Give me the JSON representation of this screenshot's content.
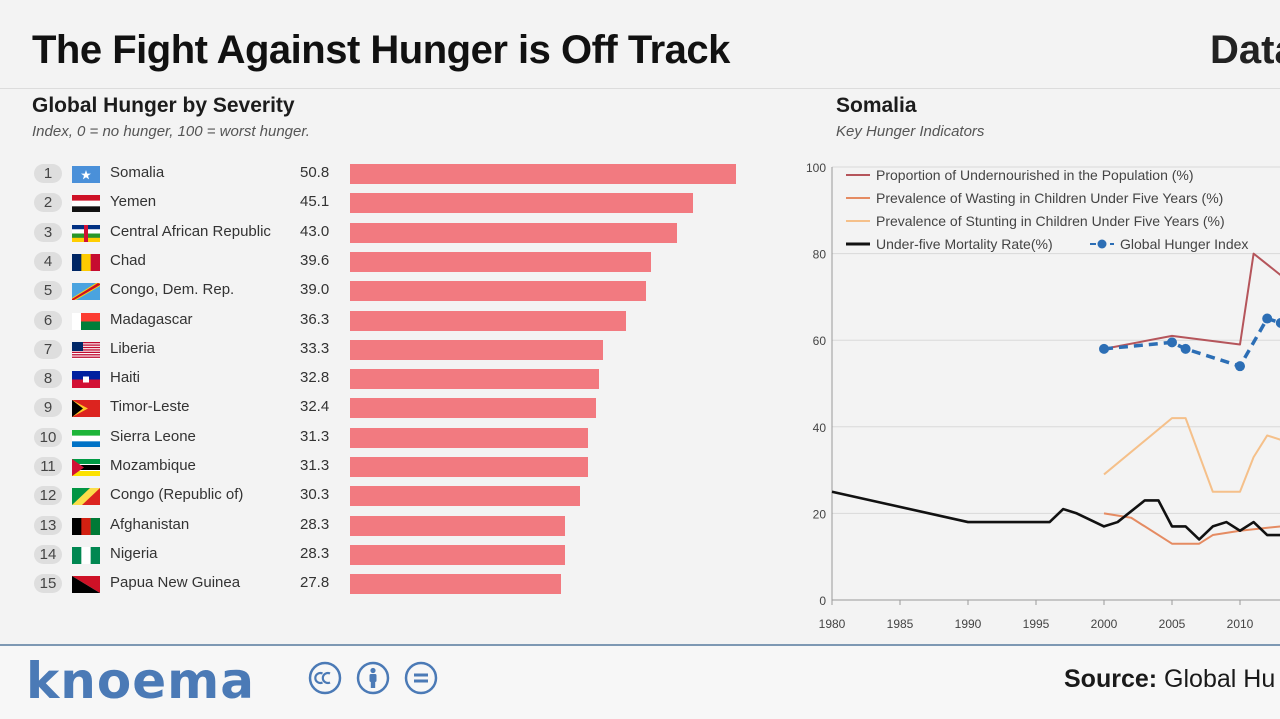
{
  "header": {
    "title": "The Fight Against Hunger is Off Track",
    "title_right": "Data"
  },
  "left_panel": {
    "title": "Global Hunger by Severity",
    "note": "Index, 0 = no hunger, 100 = worst hunger."
  },
  "right_panel": {
    "title": "Somalia",
    "note": "Key Hunger Indicators"
  },
  "chart_data": [
    {
      "type": "bar",
      "orientation": "horizontal",
      "title": "Global Hunger by Severity",
      "subtitle": "Index, 0 = no hunger, 100 = worst hunger.",
      "xlim": [
        0,
        60
      ],
      "grid": false,
      "categories": [
        "Somalia",
        "Yemen",
        "Central African Republic",
        "Chad",
        "Congo, Dem. Rep.",
        "Madagascar",
        "Liberia",
        "Haiti",
        "Timor-Leste",
        "Sierra Leone",
        "Mozambique",
        "Congo (Republic of)",
        "Afghanistan",
        "Nigeria",
        "Papua New Guinea"
      ],
      "ranks": [
        "1",
        "2",
        "3",
        "4",
        "5",
        "6",
        "7",
        "8",
        "9",
        "10",
        "11",
        "12",
        "13",
        "14",
        "15"
      ],
      "values": [
        50.8,
        45.1,
        43.0,
        39.6,
        39.0,
        36.3,
        33.3,
        32.8,
        32.4,
        31.3,
        31.3,
        30.3,
        28.3,
        28.3,
        27.8
      ],
      "value_labels": [
        "50.8",
        "45.1",
        "43.0",
        "39.6",
        "39.0",
        "36.3",
        "33.3",
        "32.8",
        "32.4",
        "31.3",
        "31.3",
        "30.3",
        "28.3",
        "28.3",
        "27.8"
      ],
      "bar_color": "#f27a80"
    },
    {
      "type": "line",
      "title": "Somalia",
      "subtitle": "Key Hunger Indicators",
      "xlim": [
        1980,
        2014
      ],
      "ylim": [
        0,
        100
      ],
      "x_ticks": [
        "1980",
        "1985",
        "1990",
        "1995",
        "2000",
        "2005",
        "2010"
      ],
      "y_ticks": [
        "0",
        "20",
        "40",
        "60",
        "80",
        "100"
      ],
      "grid": true,
      "legend_position": "top",
      "series": [
        {
          "name": "Proportion of Undernourished in the Population (%)",
          "color": "#b5555b",
          "points": [
            [
              2000,
              58
            ],
            [
              2005,
              61
            ],
            [
              2010,
              59
            ],
            [
              2011,
              80
            ],
            [
              2013,
              75
            ]
          ]
        },
        {
          "name": "Prevalence of Wasting in Children Under Five Years (%)",
          "color": "#e58b62",
          "points": [
            [
              2000,
              20
            ],
            [
              2002,
              19
            ],
            [
              2005,
              13
            ],
            [
              2007,
              13
            ],
            [
              2008,
              15
            ],
            [
              2010,
              16
            ],
            [
              2013,
              17
            ]
          ]
        },
        {
          "name": "Prevalence of Stunting in Children Under Five Years (%)",
          "color": "#f5c08a",
          "points": [
            [
              2000,
              29
            ],
            [
              2005,
              42
            ],
            [
              2006,
              42
            ],
            [
              2008,
              25
            ],
            [
              2010,
              25
            ],
            [
              2011,
              33
            ],
            [
              2012,
              38
            ],
            [
              2013,
              37
            ]
          ]
        },
        {
          "name": "Under-five Mortality Rate(%)",
          "color": "#111111",
          "points": [
            [
              1980,
              25
            ],
            [
              1990,
              18
            ],
            [
              1995,
              18
            ],
            [
              1996,
              18
            ],
            [
              1997,
              21
            ],
            [
              1998,
              20
            ],
            [
              2000,
              17
            ],
            [
              2001,
              18
            ],
            [
              2003,
              23
            ],
            [
              2004,
              23
            ],
            [
              2005,
              17
            ],
            [
              2006,
              17
            ],
            [
              2007,
              14
            ],
            [
              2008,
              17
            ],
            [
              2009,
              18
            ],
            [
              2010,
              16
            ],
            [
              2011,
              18
            ],
            [
              2012,
              15
            ],
            [
              2013,
              15
            ]
          ]
        },
        {
          "name": "Global Hunger Index",
          "color": "#2c6eb5",
          "dashed": true,
          "markers": true,
          "points": [
            [
              2000,
              58
            ],
            [
              2005,
              59.5
            ],
            [
              2006,
              58
            ],
            [
              2010,
              54
            ],
            [
              2012,
              65
            ],
            [
              2013,
              64
            ]
          ]
        }
      ]
    }
  ],
  "footer": {
    "brand": "knoema",
    "source_label": "Source:",
    "source_text": "Global Hu"
  }
}
